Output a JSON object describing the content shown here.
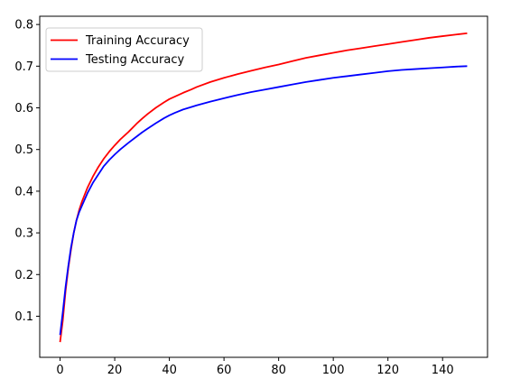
{
  "chart_data": {
    "type": "line",
    "title": "",
    "xlabel": "",
    "ylabel": "",
    "xlim": [
      -7.45,
      156.45
    ],
    "ylim": [
      0.0014,
      0.8198
    ],
    "xticks": [
      0,
      20,
      40,
      60,
      80,
      100,
      120,
      140
    ],
    "yticks": [
      0.1,
      0.2,
      0.3,
      0.4,
      0.5,
      0.6,
      0.7,
      0.8
    ],
    "xtick_labels": [
      "0",
      "20",
      "40",
      "60",
      "80",
      "100",
      "120",
      "140"
    ],
    "ytick_labels": [
      "0.1",
      "0.2",
      "0.3",
      "0.4",
      "0.5",
      "0.6",
      "0.7",
      "0.8"
    ],
    "grid": false,
    "legend_position": "upper-left",
    "series": [
      {
        "name": "Training Accuracy",
        "color": "#ff0000",
        "x": [
          0,
          1,
          2,
          3,
          4,
          5,
          6,
          7,
          8,
          10,
          12,
          14,
          16,
          18,
          20,
          22,
          25,
          28,
          30,
          32,
          35,
          38,
          40,
          42,
          45,
          48,
          50,
          55,
          60,
          65,
          70,
          75,
          80,
          85,
          90,
          95,
          100,
          105,
          110,
          115,
          120,
          125,
          130,
          135,
          140,
          145,
          149
        ],
        "values": [
          0.038,
          0.09,
          0.16,
          0.215,
          0.26,
          0.3,
          0.33,
          0.355,
          0.375,
          0.408,
          0.435,
          0.458,
          0.478,
          0.495,
          0.51,
          0.524,
          0.542,
          0.562,
          0.574,
          0.585,
          0.6,
          0.613,
          0.621,
          0.627,
          0.636,
          0.644,
          0.65,
          0.662,
          0.672,
          0.681,
          0.689,
          0.697,
          0.704,
          0.712,
          0.72,
          0.726,
          0.732,
          0.738,
          0.743,
          0.748,
          0.753,
          0.758,
          0.763,
          0.768,
          0.772,
          0.776,
          0.779
        ]
      },
      {
        "name": "Testing Accuracy",
        "color": "#0000ff",
        "x": [
          0,
          1,
          2,
          3,
          4,
          5,
          6,
          7,
          8,
          10,
          12,
          14,
          16,
          18,
          20,
          22,
          25,
          28,
          30,
          32,
          35,
          38,
          40,
          42,
          45,
          48,
          50,
          55,
          60,
          65,
          70,
          75,
          80,
          85,
          90,
          95,
          100,
          105,
          110,
          115,
          120,
          125,
          130,
          135,
          140,
          145,
          149
        ],
        "values": [
          0.055,
          0.11,
          0.17,
          0.22,
          0.265,
          0.3,
          0.33,
          0.35,
          0.365,
          0.395,
          0.42,
          0.44,
          0.46,
          0.475,
          0.488,
          0.5,
          0.516,
          0.531,
          0.541,
          0.55,
          0.563,
          0.575,
          0.582,
          0.588,
          0.596,
          0.602,
          0.606,
          0.615,
          0.623,
          0.631,
          0.638,
          0.644,
          0.65,
          0.656,
          0.662,
          0.667,
          0.672,
          0.676,
          0.68,
          0.684,
          0.688,
          0.691,
          0.693,
          0.695,
          0.697,
          0.699,
          0.7
        ]
      }
    ]
  }
}
